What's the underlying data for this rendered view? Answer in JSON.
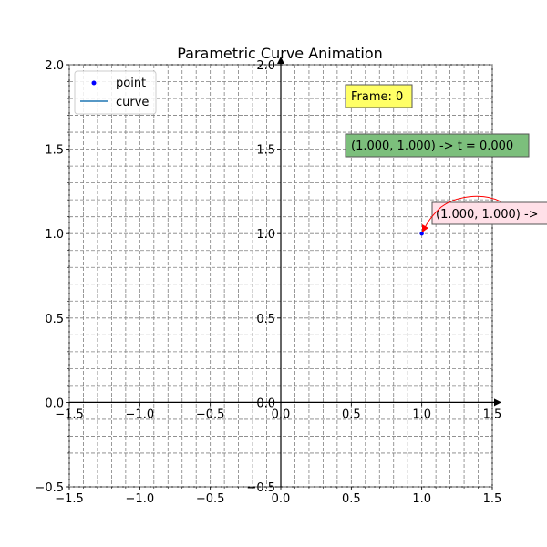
{
  "chart_data": {
    "type": "scatter",
    "title": "Parametric Curve Animation",
    "xlabel": "",
    "ylabel": "",
    "xlim": [
      -1.5,
      1.5
    ],
    "ylim": [
      -0.5,
      2.0
    ],
    "grid": true,
    "grid_style": "dashed",
    "x_major_ticks": [
      -1.5,
      -1.0,
      -0.5,
      0.0,
      0.5,
      1.0,
      1.5
    ],
    "x_tick_labels": [
      "−1.5",
      "−1.0",
      "−0.5",
      "0.0",
      "0.5",
      "1.0",
      "1.5"
    ],
    "y_major_ticks": [
      -0.5,
      0.0,
      0.5,
      1.0,
      1.5,
      2.0
    ],
    "y_tick_labels": [
      "−0.5",
      "0.0",
      "0.5",
      "1.0",
      "1.5",
      "2.0"
    ],
    "x_minor_step": 0.1,
    "y_minor_step": 0.1,
    "center_spines": true,
    "legend_position": "top-left",
    "legend": [
      {
        "label": "point",
        "marker": "dot",
        "color": "#0000ff"
      },
      {
        "label": "curve",
        "marker": "line",
        "color": "#1f77b4"
      }
    ],
    "series": [
      {
        "name": "point",
        "kind": "scatter",
        "color": "#0000ff",
        "points": [
          {
            "x": 1.0,
            "y": 1.0
          }
        ]
      },
      {
        "name": "curve",
        "kind": "line",
        "color": "#1f77b4",
        "points": []
      }
    ],
    "annotations": {
      "frame_box": {
        "text": "Frame: 0",
        "background": "#ffff66"
      },
      "param_box": {
        "text": "(1.000, 1.000) -> t = 0.000",
        "background": "#7cbf7c"
      },
      "point_label": {
        "text": "(1.000, 1.000) ->",
        "background": "#ffe0e8",
        "text_color": "#0000ff",
        "arrow_color": "#ff0000",
        "target": {
          "x": 1.0,
          "y": 1.0
        }
      }
    }
  }
}
